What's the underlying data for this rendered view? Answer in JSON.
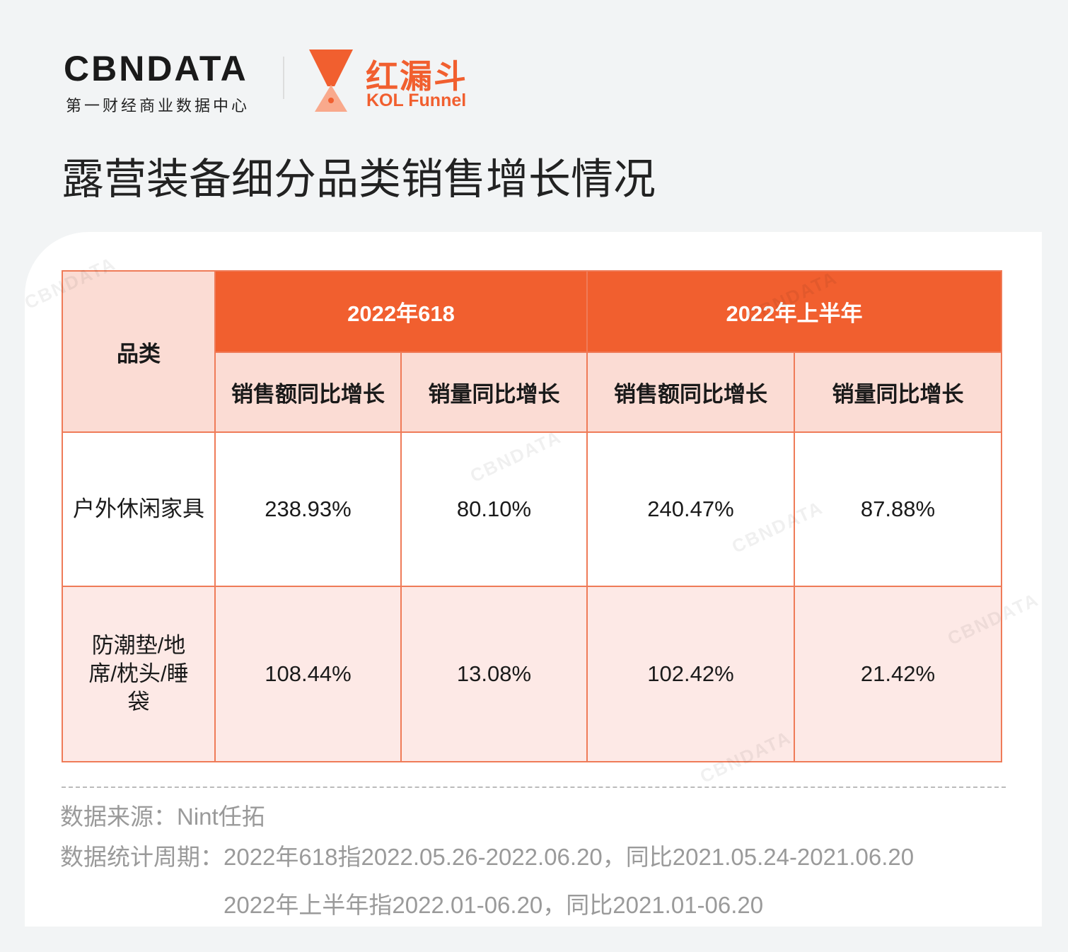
{
  "header": {
    "brand": "CBNDATA",
    "brand_sub": "第一财经商业数据中心",
    "partner": "红漏斗",
    "partner_sub": "KOL Funnel"
  },
  "title": "露营装备细分品类销售增长情况",
  "table": {
    "category_header": "品类",
    "groups": [
      "2022年618",
      "2022年上半年"
    ],
    "subheaders": [
      "销售额同比增长",
      "销量同比增长",
      "销售额同比增长",
      "销量同比增长"
    ],
    "rows": [
      [
        "户外休闲家具",
        "238.93%",
        "80.10%",
        "240.47%",
        "87.88%"
      ],
      [
        "防潮垫/地席/枕头/睡袋",
        "108.44%",
        "13.08%",
        "102.42%",
        "21.42%"
      ]
    ]
  },
  "footer": {
    "source": "数据来源：Nint任拓",
    "period_label": "数据统计周期：",
    "period_lines": [
      "2022年618指2022.05.26-2022.06.20，同比2021.05.24-2021.06.20",
      "2022年上半年指2022.01-06.20，同比2021.01-06.20"
    ]
  }
}
